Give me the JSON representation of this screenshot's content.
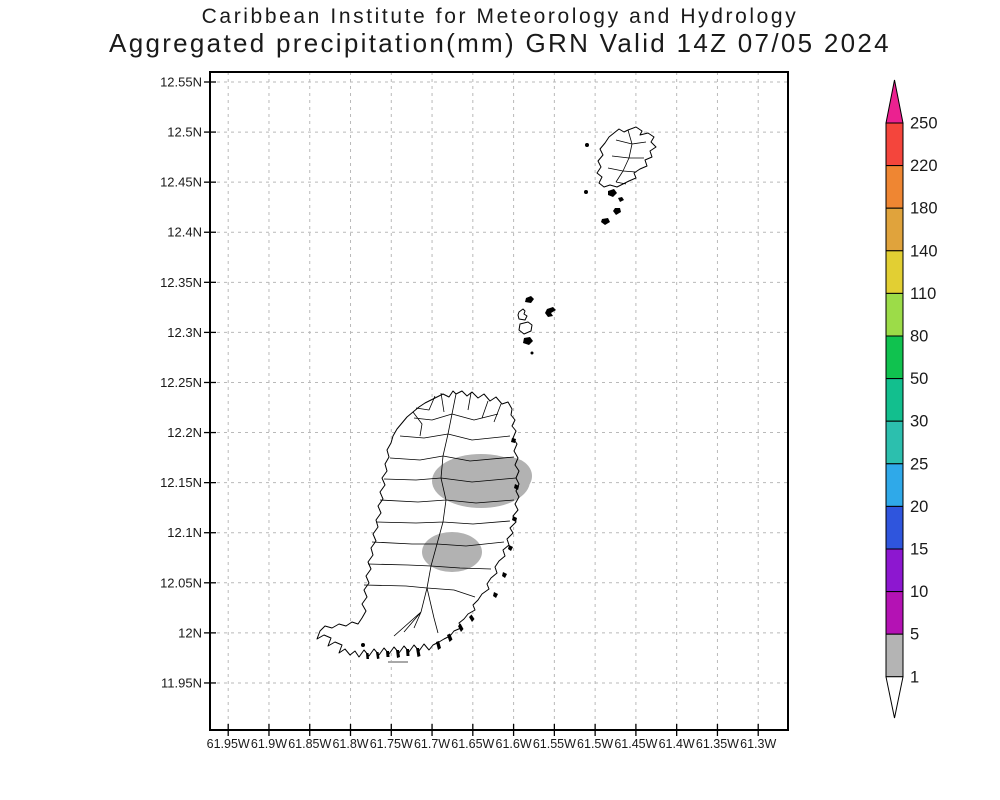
{
  "header": {
    "line1": "Caribbean Institute for Meteorology and Hydrology",
    "line2": "Aggregated precipitation(mm) GRN Valid 14Z 07/05 2024"
  },
  "map": {
    "lat_tick_labels": [
      "12.55N",
      "12.5N",
      "12.45N",
      "12.4N",
      "12.35N",
      "12.3N",
      "12.25N",
      "12.2N",
      "12.15N",
      "12.1N",
      "12.05N",
      "12N",
      "11.95N"
    ],
    "lon_tick_labels": [
      "61.95W",
      "61.9W",
      "61.85W",
      "61.8W",
      "61.75W",
      "61.7W",
      "61.65W",
      "61.6W",
      "61.55W",
      "61.5W",
      "61.45W",
      "61.4W",
      "61.35W",
      "61.3W"
    ],
    "gridline_color": "#b9b9b9",
    "coastline_color": "#000000",
    "shading_color": "#b2b2b2",
    "shaded_regions": [
      {
        "area": "north-central Grenada",
        "approx_center": "12.15N 61.64W",
        "value_mm": "1-5"
      },
      {
        "area": "south-central Grenada",
        "approx_center": "12.08N 61.68W",
        "value_mm": "1-5"
      }
    ]
  },
  "colorbar": {
    "tick_labels": [
      "250",
      "220",
      "180",
      "140",
      "110",
      "80",
      "50",
      "30",
      "25",
      "20",
      "15",
      "10",
      "5",
      "1"
    ],
    "segment_colors_top_to_bottom": [
      "#f4453c",
      "#ef8632",
      "#e0a33c",
      "#e2cf33",
      "#9cdc48",
      "#10c24f",
      "#12bf8e",
      "#2cbfae",
      "#2fa9e9",
      "#2f55dd",
      "#8d17d0",
      "#b412b4",
      "#b4b4b4"
    ],
    "above_max_color": "#eb2190",
    "below_min_color": "#ffffff"
  }
}
